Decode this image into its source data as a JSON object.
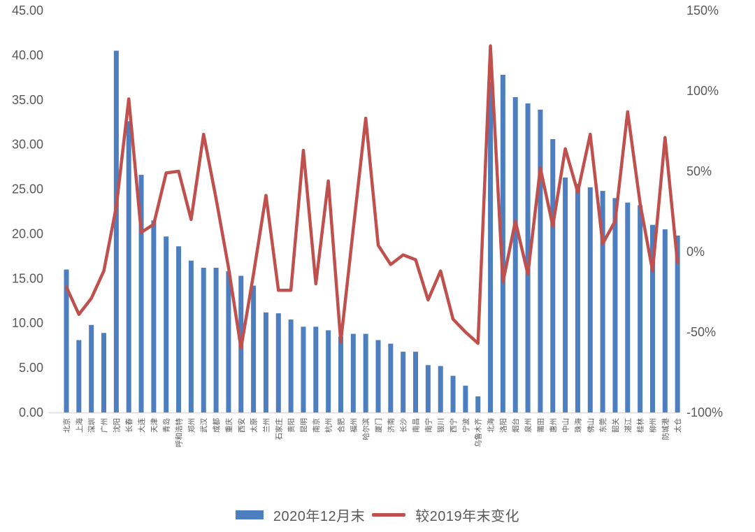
{
  "chart_data": {
    "type": "bar",
    "title": "",
    "xlabel": "",
    "ylabel_left": "",
    "ylabel_right": "",
    "grid": false,
    "legend_position": "bottom",
    "categories": [
      "北京",
      "上海",
      "深圳",
      "广州",
      "沈阳",
      "长春",
      "大连",
      "天津",
      "青岛",
      "呼和浩特",
      "郑州",
      "武汉",
      "成都",
      "重庆",
      "西安",
      "太原",
      "兰州",
      "石家庄",
      "贵阳",
      "昆明",
      "南京",
      "杭州",
      "合肥",
      "福州",
      "哈尔滨",
      "厦门",
      "济南",
      "长沙",
      "南昌",
      "南宁",
      "银川",
      "西宁",
      "宁波",
      "乌鲁木齐",
      "北海",
      "洛阳",
      "烟台",
      "泉州",
      "莆田",
      "惠州",
      "中山",
      "珠海",
      "佛山",
      "东莞",
      "韶关",
      "湛江",
      "桂林",
      "柳州",
      "防城港",
      "太仓"
    ],
    "series": [
      {
        "name": "2020年12月末",
        "type": "bar",
        "axis": "left",
        "color": "#4d7ebf",
        "values": [
          16.0,
          8.1,
          9.8,
          8.9,
          40.5,
          32.6,
          26.6,
          21.5,
          19.7,
          18.6,
          17.0,
          16.2,
          16.2,
          15.8,
          15.3,
          14.2,
          11.2,
          11.1,
          10.4,
          9.6,
          9.6,
          9.2,
          8.5,
          8.8,
          8.8,
          8.1,
          7.7,
          6.8,
          6.8,
          5.3,
          5.2,
          4.1,
          3.0,
          1.8,
          37.0,
          37.8,
          35.3,
          34.6,
          33.9,
          30.6,
          26.3,
          25.6,
          25.2,
          24.8,
          24.0,
          23.5,
          23.2,
          21.0,
          20.5,
          19.8
        ]
      },
      {
        "name": "较2019年末变化",
        "type": "line",
        "axis": "right",
        "color": "#C0504D",
        "values_pct": [
          -22,
          -39,
          -29,
          -12,
          28,
          95,
          12,
          17,
          49,
          50,
          20,
          73,
          33,
          -10,
          -60,
          -14,
          35,
          -24,
          -24,
          63,
          -20,
          44,
          -56,
          14,
          83,
          4,
          -8,
          -2,
          -5,
          -30,
          -12,
          -42,
          -50,
          -57,
          128,
          -19,
          19,
          -14,
          52,
          16,
          64,
          37,
          73,
          5,
          19,
          87,
          30,
          -12,
          71,
          -7
        ]
      }
    ],
    "left_axis": {
      "min": 0,
      "max": 45,
      "tick_step": 5,
      "ticks": [
        "0.00",
        "5.00",
        "10.00",
        "15.00",
        "20.00",
        "25.00",
        "30.00",
        "35.00",
        "40.00",
        "45.00"
      ]
    },
    "right_axis": {
      "min": -100,
      "max": 150,
      "tick_step": 50,
      "ticks": [
        "-100%",
        "-50%",
        "0%",
        "50%",
        "100%",
        "150%"
      ]
    }
  },
  "legend": {
    "bar_label": "2020年12月末",
    "line_label": "较2019年末变化"
  },
  "colors": {
    "bar": "#4d7ebf",
    "line": "#C0504D",
    "axis_text": "#595959",
    "baseline": "#d9d9d9",
    "background": "#ffffff"
  }
}
